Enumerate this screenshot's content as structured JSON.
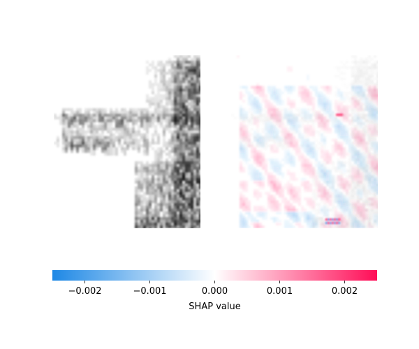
{
  "chart_data": {
    "type": "heatmap",
    "title": "",
    "panels": [
      {
        "name": "",
        "kind": "input-image-grayscale"
      },
      {
        "name": "",
        "kind": "shap-overlay"
      }
    ],
    "colorbar": {
      "label": "SHAP value",
      "range": [
        -0.0025,
        0.0025
      ],
      "ticks": [
        -0.002,
        -0.001,
        0.0,
        0.001,
        0.002
      ],
      "tick_labels": [
        "−0.002",
        "−0.001",
        "0.000",
        "0.001",
        "0.002"
      ],
      "colors": {
        "negative": "#1e88e5",
        "zero": "#ffffff",
        "positive": "#ff0d57"
      }
    },
    "grid": false,
    "legend": "none"
  }
}
